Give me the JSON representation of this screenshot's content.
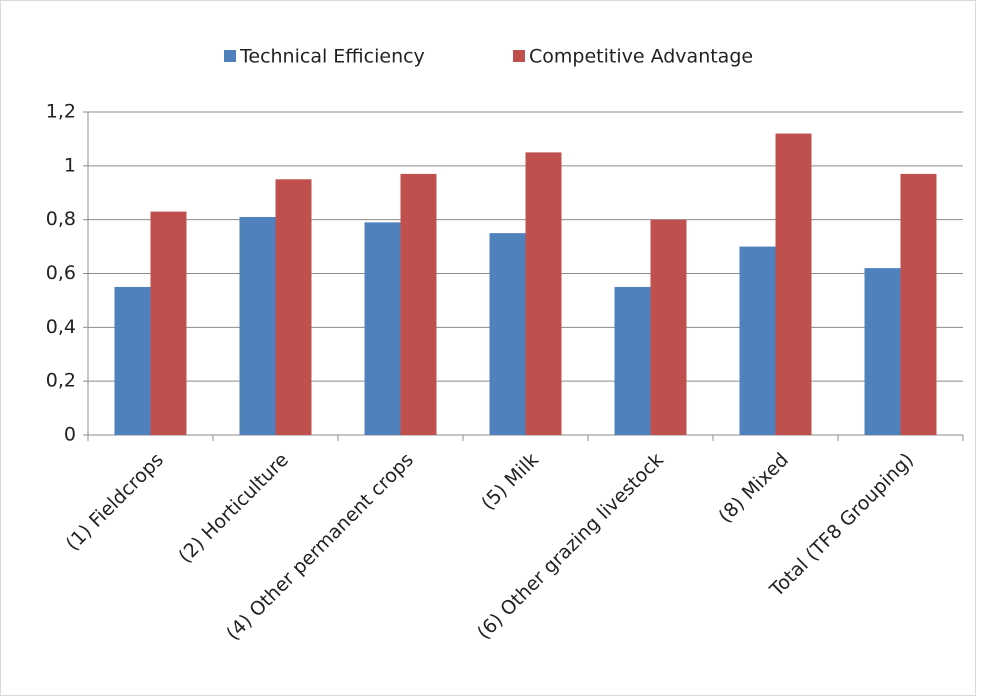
{
  "chart_data": {
    "type": "bar",
    "categories": [
      "(1) Fieldcrops",
      "(2) Horticulture",
      "(4) Other permanent crops",
      "(5) Milk",
      "(6) Other grazing livestock",
      "(8) Mixed",
      "Total (TF8 Grouping)"
    ],
    "series": [
      {
        "name": "Technical Efficiency",
        "color": "#4f81bd",
        "values": [
          0.55,
          0.81,
          0.79,
          0.75,
          0.55,
          0.7,
          0.62
        ]
      },
      {
        "name": "Competitive Advantage",
        "color": "#c0504d",
        "values": [
          0.83,
          0.95,
          0.97,
          1.05,
          0.8,
          1.12,
          0.97
        ]
      }
    ],
    "ylim": [
      0,
      1.2
    ],
    "yticks": [
      0,
      {
        "value": 0.2,
        "label": "0,2"
      },
      {
        "value": 0.4,
        "label": "0,4"
      },
      {
        "value": 0.6,
        "label": "0,6"
      },
      {
        "value": 0.8,
        "label": "0,8"
      },
      1,
      {
        "value": 1.2,
        "label": "1,2"
      }
    ],
    "grid": true,
    "legend": "top"
  }
}
